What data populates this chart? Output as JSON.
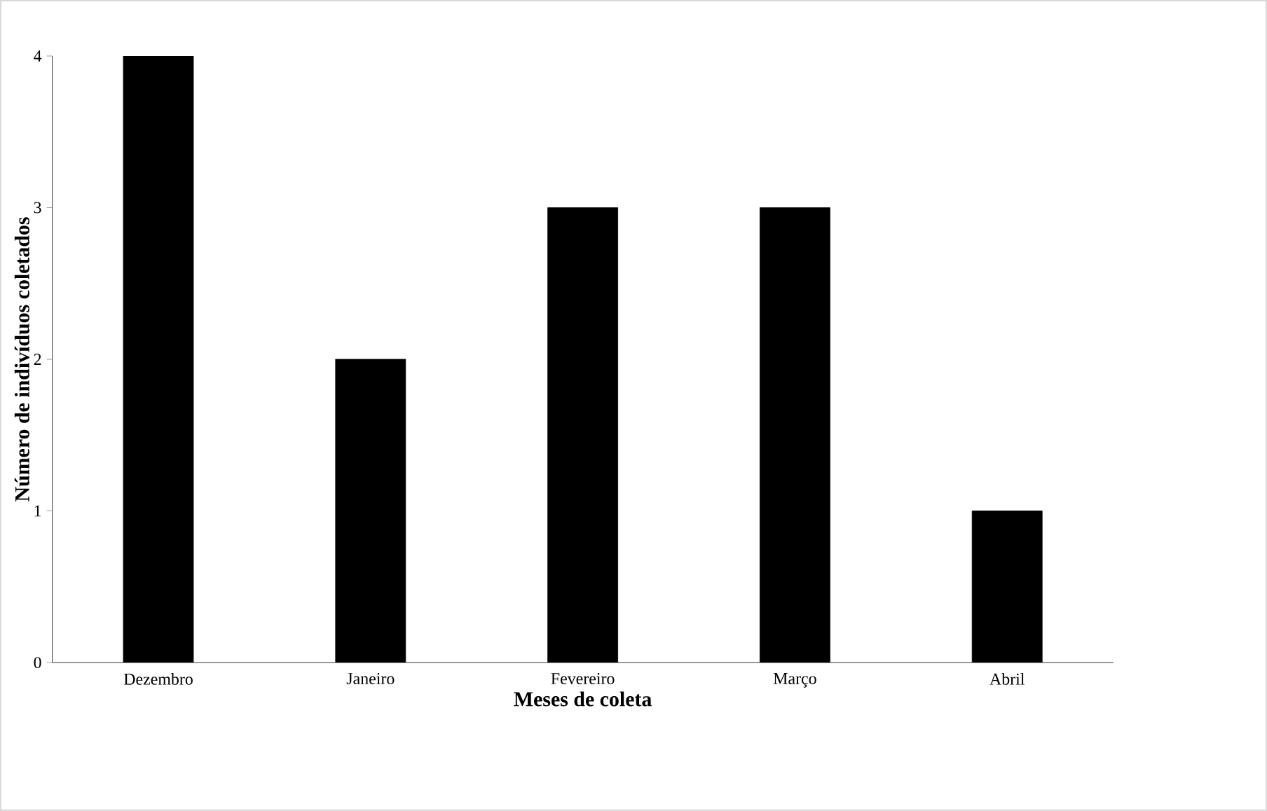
{
  "chart_data": {
    "type": "bar",
    "xlabel": "Meses de coleta",
    "ylabel": "Número de indivíduos coletados",
    "categories": [
      "Dezembro",
      "Janeiro",
      "Fevereiro",
      "Março",
      "Abril"
    ],
    "values": [
      4,
      2,
      3,
      3,
      1
    ],
    "color": "#000000",
    "ylim": [
      0,
      4
    ],
    "yticks": [
      0,
      1,
      2,
      3,
      4
    ],
    "grid": false
  }
}
